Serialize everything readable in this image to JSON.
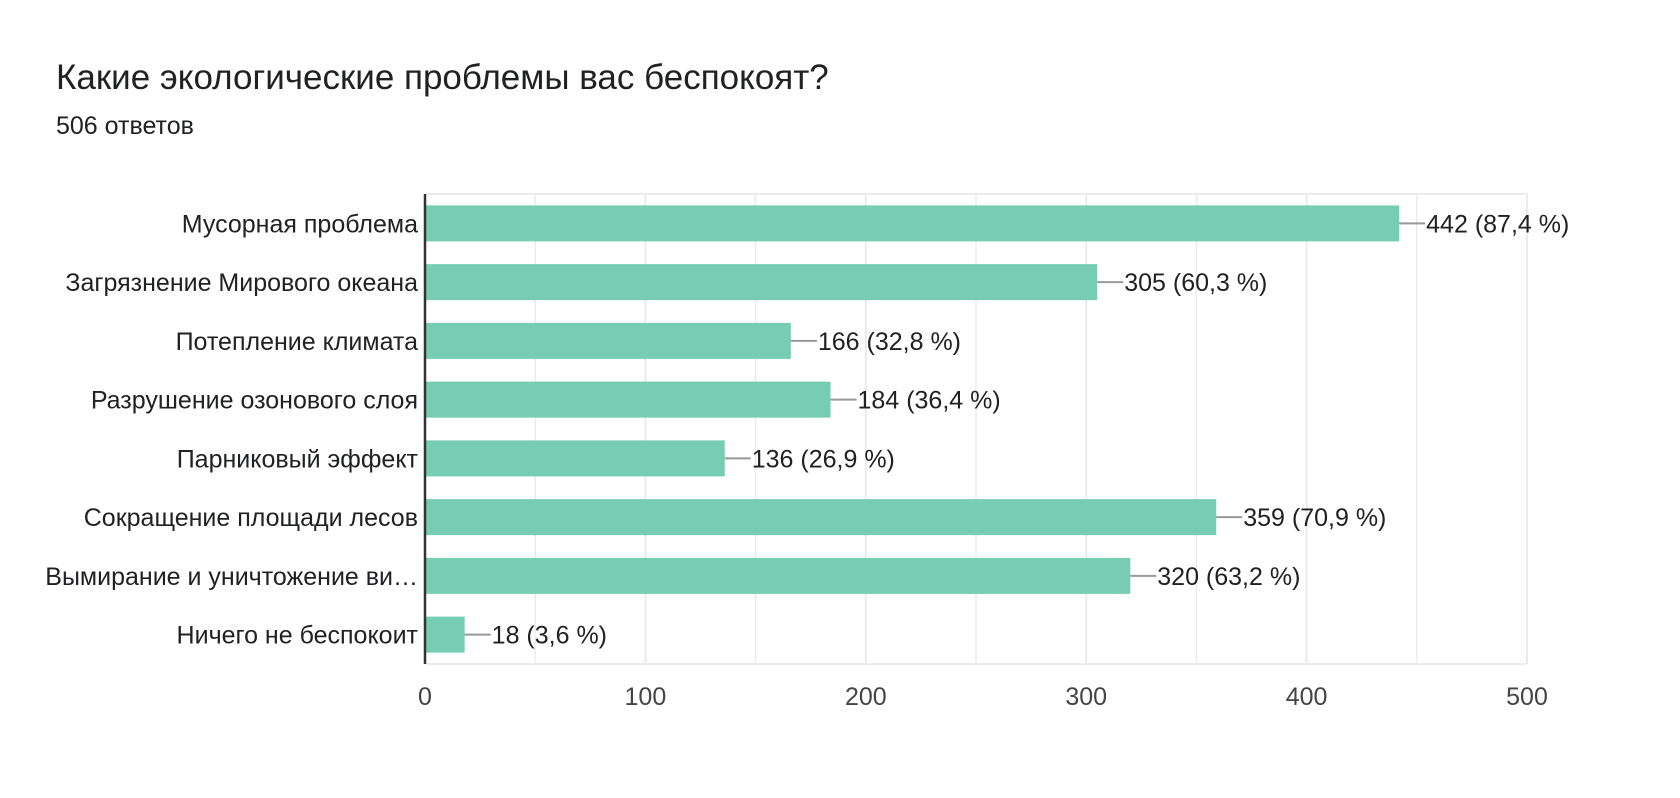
{
  "header": {
    "title": "Какие экологические проблемы вас беспокоят?",
    "responses": "506 ответов"
  },
  "colors": {
    "bar": "#76cdb2",
    "grid": "#ebebeb",
    "axis": "#333333",
    "leader": "#999999"
  },
  "chart_data": {
    "type": "bar",
    "orientation": "horizontal",
    "categories": [
      "Мусорная проблема",
      "Загрязнение Мирового океана",
      "Потепление климата",
      "Разрушение озонового слоя",
      "Парниковый эффект",
      "Сокращение площади лесов",
      "Вымирание и уничтожение ви…",
      "Ничего не беспокоит"
    ],
    "values": [
      442,
      305,
      166,
      184,
      136,
      359,
      320,
      18
    ],
    "value_labels": [
      "442 (87,4 %)",
      "305 (60,3 %)",
      "166 (32,8 %)",
      "184 (36,4 %)",
      "136 (26,9 %)",
      "359 (70,9 %)",
      "320 (63,2 %)",
      "18 (3,6 %)"
    ],
    "xlim": [
      0,
      500
    ],
    "xticks": [
      0,
      100,
      200,
      300,
      400,
      500
    ],
    "xtick_labels": [
      "0",
      "100",
      "200",
      "300",
      "400",
      "500"
    ],
    "grid": true,
    "legend": "none"
  }
}
